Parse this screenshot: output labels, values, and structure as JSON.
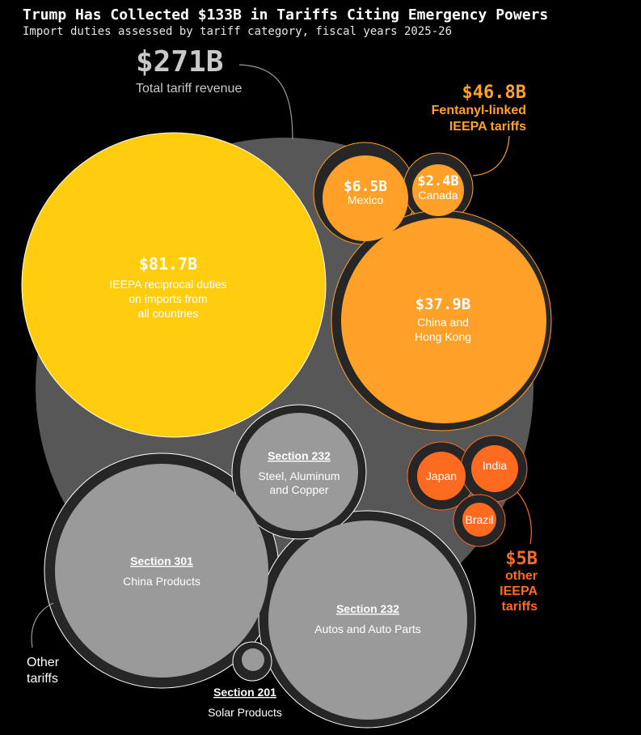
{
  "title": "Trump Has Collected $133B in Tariffs Citing Emergency Powers",
  "subtitle": "Import duties assessed by tariff category, fiscal years 2025-26",
  "colors": {
    "background": "#000000",
    "total_circle": "#575757",
    "reciprocal": "#ffcc0e",
    "fentanyl": "#ffa028",
    "other_ieepa": "#ff6a21",
    "other_tariffs": "#9a9a9a",
    "group_ring": "#262626"
  },
  "chart_data": {
    "type": "bubble",
    "units": "USD billions",
    "total": {
      "value": 271,
      "label": "$271B",
      "caption": "Total tariff revenue"
    },
    "groups": [
      {
        "key": "reciprocal",
        "items": [
          {
            "key": "reciprocal",
            "value": 81.7,
            "value_label": "$81.7B",
            "label_lines": [
              "IEEPA reciprocal duties",
              "on imports from",
              "all countries"
            ]
          }
        ]
      },
      {
        "key": "fentanyl",
        "value": 46.8,
        "callout_value": "$46.8B",
        "callout_lines": [
          "Fentanyl-linked",
          "IEEPA tariffs"
        ],
        "items": [
          {
            "key": "mexico",
            "value": 6.5,
            "value_label": "$6.5B",
            "label_lines": [
              "Mexico"
            ]
          },
          {
            "key": "canada",
            "value": 2.4,
            "value_label": "$2.4B",
            "label_lines": [
              "Canada"
            ]
          },
          {
            "key": "china_hk",
            "value": 37.9,
            "value_label": "$37.9B",
            "label_lines": [
              "China and",
              "Hong Kong"
            ]
          }
        ]
      },
      {
        "key": "other_ieepa",
        "value": 5,
        "callout_value": "$5B",
        "callout_lines": [
          "other",
          "IEEPA",
          "tariffs"
        ],
        "items": [
          {
            "key": "japan",
            "label_lines": [
              "Japan"
            ]
          },
          {
            "key": "india",
            "label_lines": [
              "India"
            ]
          },
          {
            "key": "brazil",
            "label_lines": [
              "Brazil"
            ]
          }
        ]
      },
      {
        "key": "other_tariffs",
        "callout_lines": [
          "Other",
          "tariffs"
        ],
        "items": [
          {
            "key": "s232_steel",
            "heading": "Section 232",
            "label_lines": [
              "Steel, Aluminum",
              "and Copper"
            ]
          },
          {
            "key": "s301",
            "heading": "Section 301",
            "label_lines": [
              "China Products"
            ]
          },
          {
            "key": "s232_autos",
            "heading": "Section 232",
            "label_lines": [
              "Autos and Auto Parts"
            ]
          },
          {
            "key": "s201",
            "heading": "Section 201",
            "label_lines": [
              "Solar Products"
            ]
          }
        ]
      }
    ]
  }
}
